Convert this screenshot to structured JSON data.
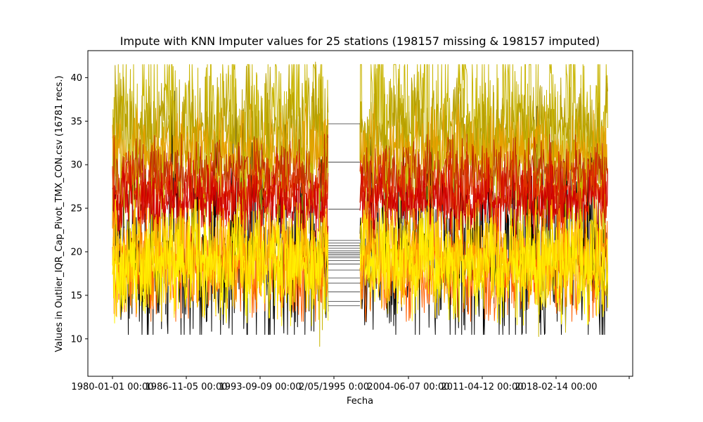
{
  "chart_data": {
    "type": "line",
    "title": "Impute with KNN Imputer values for 25 stations (198157 missing & 198157 imputed)",
    "xlabel": "Fecha",
    "ylabel": "Values in Outlier_IQR_Cap_Pivot_TMX_CON.csv (16781 recs.)",
    "x_ticks": [
      "1980-01-01 00:00",
      "1986-11-05 00:00",
      "1993-09-09 00:00",
      "2/05/1995 0:00",
      "2004-06-07 00:00",
      "2011-04-12 00:00",
      "2018-02-14 00:00"
    ],
    "y_ticks": [
      10,
      15,
      20,
      25,
      30,
      35,
      40
    ],
    "ylim": [
      5.7,
      43.1
    ],
    "grid": false,
    "legend": false,
    "data_gap": {
      "start": "1995-02-05",
      "end": "1998-09-01"
    },
    "gap_connector_values": [
      34.7,
      30.3,
      24.9,
      21.3,
      21.0,
      20.7,
      20.4,
      20.1,
      19.9,
      19.7,
      19.5,
      19.3,
      19.0,
      18.6,
      17.9,
      17.0,
      16.4,
      15.4,
      14.3,
      13.8
    ],
    "series": [
      {
        "color": "#000000",
        "values_approx": {
          "min": 10.5,
          "max": 38.5,
          "median": 20
        }
      },
      {
        "color": "#C8B400",
        "values_approx": {
          "min": 8.0,
          "max": 41.5,
          "median": 33.5
        }
      },
      {
        "color": "#B8A000",
        "values_approx": {
          "min": 29.0,
          "max": 41.8,
          "median": 34
        }
      },
      {
        "color": "#E6A000",
        "values_approx": {
          "min": 27.0,
          "max": 37.0,
          "median": 31.5
        }
      },
      {
        "color": "#C03000",
        "values_approx": {
          "min": 24.5,
          "max": 33.5,
          "median": 29
        }
      },
      {
        "color": "#E03000",
        "values_approx": {
          "min": 22.5,
          "max": 31.5,
          "median": 27
        }
      },
      {
        "color": "#D00000",
        "values_approx": {
          "min": 21.0,
          "max": 30.0,
          "median": 25.5
        }
      },
      {
        "color": "#FF6000",
        "values_approx": {
          "min": 12.0,
          "max": 25.0,
          "median": 18
        }
      },
      {
        "color": "#FFA000",
        "values_approx": {
          "min": 13.5,
          "max": 25.0,
          "median": 19.5
        }
      },
      {
        "color": "#FFD000",
        "values_approx": {
          "min": 12.0,
          "max": 26.0,
          "median": 19.5
        }
      },
      {
        "color": "#FFF000",
        "values_approx": {
          "min": 11.5,
          "max": 25.0,
          "median": 18.5
        }
      }
    ]
  }
}
